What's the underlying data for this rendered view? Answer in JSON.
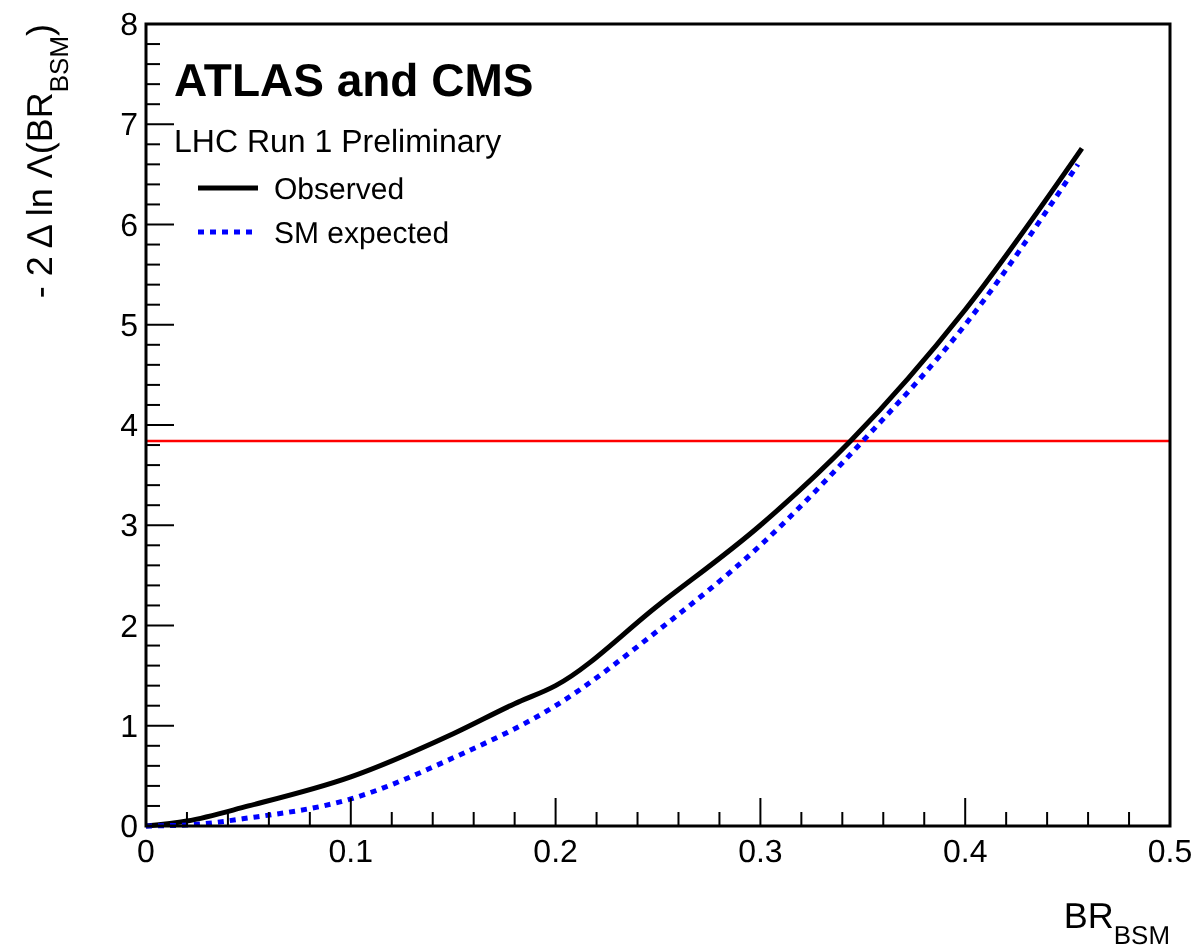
{
  "chart_data": {
    "type": "line",
    "title": "ATLAS and CMS",
    "subtitle": "LHC Run 1 Preliminary",
    "xlabel": "BR$_{BSM}$",
    "ylabel": "- 2 Δ ln Λ(BR$_{BSM}$)",
    "xlim": [
      0,
      0.5
    ],
    "ylim": [
      0,
      8
    ],
    "xticks": [
      0,
      {
        "value": 0.02,
        "label": null
      },
      {
        "value": 0.04,
        "label": null
      },
      {
        "value": 0.06,
        "label": null
      },
      {
        "value": 0.08,
        "label": null
      },
      0.1,
      {
        "value": 0.12,
        "label": null
      },
      {
        "value": 0.14,
        "label": null
      },
      {
        "value": 0.16,
        "label": null
      },
      {
        "value": 0.18,
        "label": null
      },
      0.2,
      {
        "value": 0.22,
        "label": null
      },
      {
        "value": 0.24,
        "label": null
      },
      {
        "value": 0.26,
        "label": null
      },
      {
        "value": 0.28,
        "label": null
      },
      0.3,
      {
        "value": 0.32,
        "label": null
      },
      {
        "value": 0.34,
        "label": null
      },
      {
        "value": 0.36,
        "label": null
      },
      {
        "value": 0.38,
        "label": null
      },
      0.4,
      {
        "value": 0.42,
        "label": null
      },
      {
        "value": 0.44,
        "label": null
      },
      {
        "value": 0.46,
        "label": null
      },
      {
        "value": 0.48,
        "label": null
      },
      0.5
    ],
    "yticks": [
      0,
      {
        "value": 0.2,
        "label": null
      },
      {
        "value": 0.4,
        "label": null
      },
      {
        "value": 0.6,
        "label": null
      },
      {
        "value": 0.8,
        "label": null
      },
      1,
      {
        "value": 1.2,
        "label": null
      },
      {
        "value": 1.4,
        "label": null
      },
      {
        "value": 1.6,
        "label": null
      },
      {
        "value": 1.8,
        "label": null
      },
      2,
      {
        "value": 2.2,
        "label": null
      },
      {
        "value": 2.4,
        "label": null
      },
      {
        "value": 2.6,
        "label": null
      },
      {
        "value": 2.8,
        "label": null
      },
      3,
      {
        "value": 3.2,
        "label": null
      },
      {
        "value": 3.4,
        "label": null
      },
      {
        "value": 3.6,
        "label": null
      },
      {
        "value": 3.8,
        "label": null
      },
      4,
      {
        "value": 4.2,
        "label": null
      },
      {
        "value": 4.4,
        "label": null
      },
      {
        "value": 4.6,
        "label": null
      },
      {
        "value": 4.8,
        "label": null
      },
      5,
      {
        "value": 5.2,
        "label": null
      },
      {
        "value": 5.4,
        "label": null
      },
      {
        "value": 5.6,
        "label": null
      },
      {
        "value": 5.8,
        "label": null
      },
      6,
      {
        "value": 6.2,
        "label": null
      },
      {
        "value": 6.4,
        "label": null
      },
      {
        "value": 6.6,
        "label": null
      },
      {
        "value": 6.8,
        "label": null
      },
      7,
      {
        "value": 7.2,
        "label": null
      },
      {
        "value": 7.4,
        "label": null
      },
      {
        "value": 7.6,
        "label": null
      },
      {
        "value": 7.8,
        "label": null
      },
      8
    ],
    "grid": false,
    "legend": "top left",
    "series": [
      {
        "name": "Observed",
        "color": "#000000",
        "line_style": "solid",
        "x": [
          0,
          0.02,
          0.05,
          0.1,
          0.15,
          0.18,
          0.2,
          0.25,
          0.3,
          0.344,
          0.4,
          0.457
        ],
        "values": [
          0,
          0.05,
          0.2,
          0.49,
          0.92,
          1.22,
          1.4,
          2.2,
          3.0,
          3.84,
          5.15,
          6.76
        ]
      },
      {
        "name": "SM expected",
        "color": "#0000ff",
        "line_style": "dotted",
        "x": [
          0,
          0.02,
          0.05,
          0.1,
          0.15,
          0.2,
          0.25,
          0.3,
          0.35,
          0.4,
          0.455
        ],
        "values": [
          0,
          0.01,
          0.08,
          0.27,
          0.68,
          1.2,
          1.95,
          2.8,
          3.84,
          5.0,
          6.6
        ]
      }
    ],
    "ref_lines": [
      {
        "axis": "y",
        "value": 3.84,
        "color": "#ff0000",
        "line_style": "solid"
      }
    ]
  }
}
